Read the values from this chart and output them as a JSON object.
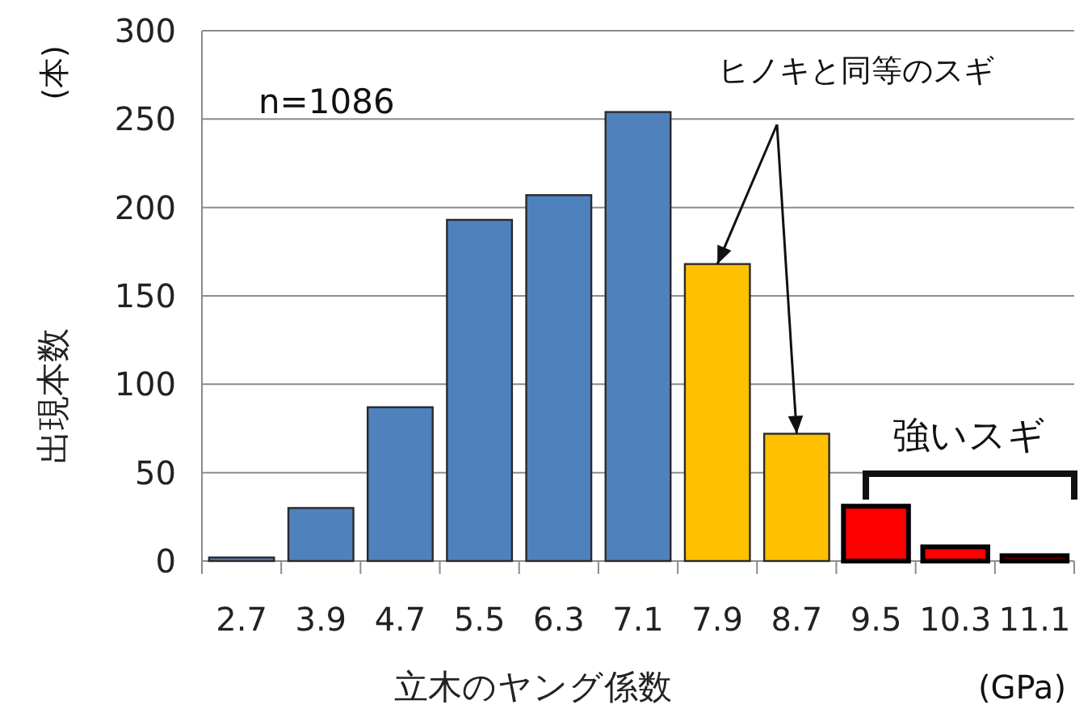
{
  "chart_data": {
    "type": "bar",
    "categories": [
      "2.7",
      "3.9",
      "4.7",
      "5.5",
      "6.3",
      "7.1",
      "7.9",
      "8.7",
      "9.5",
      "10.3",
      "11.1"
    ],
    "values": [
      2,
      30,
      87,
      193,
      207,
      254,
      168,
      72,
      31,
      8,
      3
    ],
    "colors": [
      "#4f81bd",
      "#4f81bd",
      "#4f81bd",
      "#4f81bd",
      "#4f81bd",
      "#4f81bd",
      "#ffc000",
      "#ffc000",
      "#ff0000",
      "#ff0000",
      "#ff0000"
    ],
    "xlabel": "立木のヤング係数",
    "ylabel": "出現本数",
    "ylim": [
      0,
      300
    ],
    "yticks": [
      0,
      50,
      100,
      150,
      200,
      250,
      300
    ],
    "grid": "y",
    "annotations": [
      "n=1086",
      {
        "text": "ヒノキと同等のスギ",
        "x": "7.9",
        "y": 168
      },
      "強いスギ",
      "(GPa)",
      "(本)"
    ]
  }
}
